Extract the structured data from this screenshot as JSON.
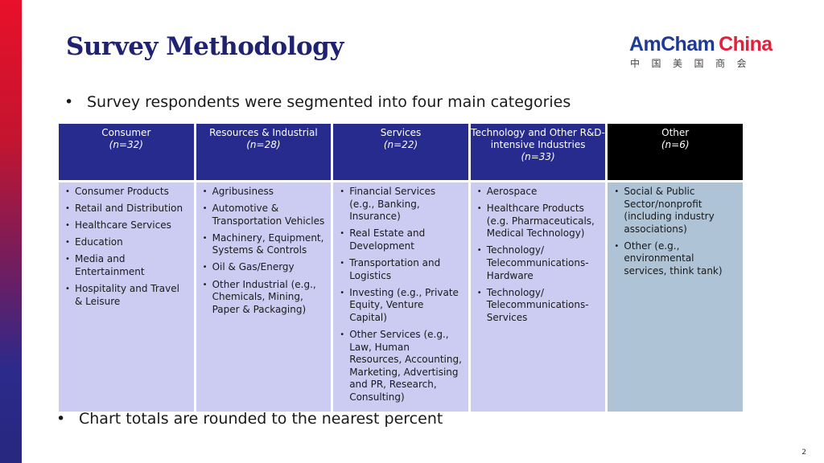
{
  "slide": {
    "title": "Survey Methodology",
    "logo": {
      "part1": "AmCham",
      "part2": "China",
      "chinese": "中国美国商会"
    },
    "bullet1": "Survey respondents were segmented into four main categories",
    "bullet2": "Chart totals are rounded to the nearest percent",
    "bullet_char": "•",
    "page_number": "2"
  },
  "table": {
    "columns": [
      {
        "header": "Consumer",
        "n": "(n=32)",
        "items": [
          "Consumer Products",
          "Retail and Distribution",
          "Healthcare Services",
          "Education",
          "Media and Entertainment",
          "Hospitality and Travel & Leisure"
        ]
      },
      {
        "header": "Resources & Industrial",
        "n": "(n=28)",
        "items": [
          "Agribusiness",
          "Automotive & Transportation Vehicles",
          "Machinery, Equipment, Systems & Controls",
          "Oil & Gas/Energy",
          "Other Industrial  (e.g., Chemicals, Mining, Paper & Packaging)"
        ]
      },
      {
        "header": "Services",
        "n": "(n=22)",
        "items": [
          "Financial Services (e.g., Banking, Insurance)",
          "Real Estate and Development",
          "Transportation and Logistics",
          "Investing (e.g., Private Equity, Venture Capital)",
          "Other Services (e.g., Law, Human Resources, Accounting, Marketing, Advertising and PR, Research, Consulting)"
        ]
      },
      {
        "header": "Technology and Other R&D-intensive Industries",
        "n": "(n=33)",
        "items": [
          "Aerospace",
          "Healthcare Products (e.g. Pharmaceuticals, Medical Technology)",
          "Technology/ Telecommunications-Hardware",
          "Technology/ Telecommunications-Services"
        ]
      },
      {
        "header": "Other",
        "n": "(n=6)",
        "items": [
          "Social & Public Sector/nonprofit (including industry associations)",
          "Other (e.g., environmental services, think tank)"
        ]
      }
    ]
  },
  "colors": {
    "header_blue": "#262b8d",
    "header_black": "#000000",
    "cell_lavender": "#ccccf2",
    "cell_steel": "#aec3d6",
    "title_navy": "#1f2270",
    "logo_blue": "#1f3a93",
    "logo_red": "#e2203a"
  }
}
